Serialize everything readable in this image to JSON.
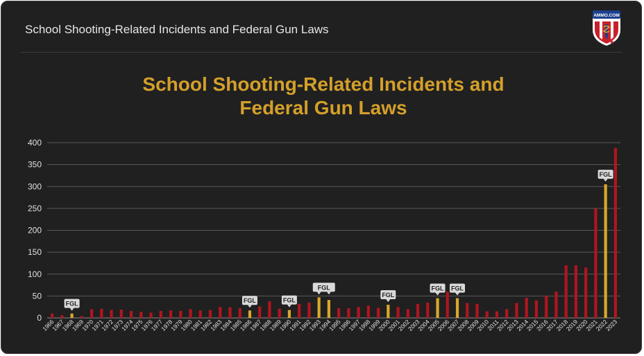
{
  "header": {
    "title": "School Shooting-Related Incidents and Federal Gun Laws"
  },
  "logo": {
    "text": "AMMO.COM"
  },
  "chart_data": {
    "type": "bar",
    "title_line1": "School Shooting-Related Incidents and",
    "title_line2": "Federal Gun Laws",
    "categories": [
      "1966",
      "1967",
      "1968",
      "1969",
      "1970",
      "1971",
      "1972",
      "1973",
      "1974",
      "1975",
      "1976",
      "1977",
      "1978",
      "1979",
      "1980",
      "1981",
      "1982",
      "1983",
      "1984",
      "1985",
      "1986",
      "1987",
      "1988",
      "1989",
      "1990",
      "1991",
      "1992",
      "1993",
      "1994",
      "1995",
      "1996",
      "1997",
      "1998",
      "1999",
      "2000",
      "2001",
      "2002",
      "2003",
      "2004",
      "2005",
      "2006",
      "2007",
      "2008",
      "2009",
      "2010",
      "2011",
      "2012",
      "2013",
      "2014",
      "2015",
      "2016",
      "2017",
      "2018",
      "2019",
      "2020",
      "2021",
      "2022",
      "2023"
    ],
    "values": [
      10,
      6,
      10,
      4,
      20,
      21,
      18,
      19,
      16,
      14,
      12,
      16,
      17,
      16,
      20,
      17,
      18,
      25,
      24,
      22,
      17,
      26,
      38,
      21,
      18,
      32,
      35,
      47,
      41,
      22,
      22,
      25,
      28,
      23,
      30,
      25,
      20,
      32,
      35,
      45,
      60,
      45,
      34,
      32,
      15,
      15,
      20,
      34,
      46,
      40,
      50,
      60,
      120,
      120,
      115,
      250,
      305,
      388
    ],
    "highlight": [
      "1968",
      "1986",
      "1990",
      "1993",
      "1994",
      "2000",
      "2005",
      "2007",
      "2022"
    ],
    "annotations": [
      {
        "year": "1968",
        "text": "FGL"
      },
      {
        "year": "1986",
        "text": "FGL"
      },
      {
        "year": "1990",
        "text": "FGL"
      },
      {
        "year": "1993",
        "text": "FGL",
        "span_to": "1994"
      },
      {
        "year": "2000",
        "text": "FGL"
      },
      {
        "year": "2005",
        "text": "FGL"
      },
      {
        "year": "2007",
        "text": "FGL"
      },
      {
        "year": "2022",
        "text": "FGL"
      }
    ],
    "y_ticks": [
      0,
      50,
      100,
      150,
      200,
      250,
      300,
      350,
      400
    ],
    "ylim": [
      0,
      400
    ],
    "grid": true,
    "colors": {
      "bar": "#b0151f",
      "highlight": "#d9a72a",
      "grid": "#5a5a5a",
      "text": "#e0e0e0",
      "title": "#d4a02a",
      "label_bg": "#d9d9d9"
    }
  }
}
